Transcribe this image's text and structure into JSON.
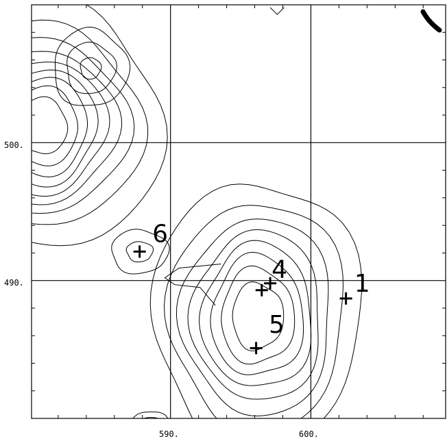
{
  "chart_data": {
    "type": "contour",
    "title": "",
    "xlabel": "",
    "ylabel": "",
    "x_axis_reversed": false,
    "xlim": [
      580.1,
      609.6
    ],
    "ylim": [
      480,
      510
    ],
    "x_gridlines": [
      590,
      600
    ],
    "y_gridlines": [
      490,
      500
    ],
    "x_tick_labels": [
      {
        "value": 590,
        "text": "590."
      },
      {
        "value": 600,
        "text": "600."
      }
    ],
    "y_tick_labels": [
      {
        "value": 500,
        "text": "500."
      },
      {
        "value": 490,
        "text": "490."
      }
    ],
    "x_minor_ticks": [
      582,
      584,
      586,
      588,
      592,
      594,
      596,
      598,
      602,
      604,
      606,
      608
    ],
    "y_minor_ticks": [
      482,
      484,
      486,
      488,
      492,
      494,
      496,
      498,
      502,
      504,
      506,
      508
    ],
    "peaks": [
      {
        "label": "1",
        "x": 602.5,
        "y": 488.7,
        "label_x": 603.1,
        "label_y": 489.2
      },
      {
        "label": "4",
        "x": 596.5,
        "y": 489.3,
        "label_x": 597.2,
        "label_y": 490.2
      },
      {
        "label": "5",
        "x": 596.1,
        "y": 485.1,
        "label_x": 597.0,
        "label_y": 486.2
      },
      {
        "label": "6",
        "x": 587.8,
        "y": 492.1,
        "label_x": 588.7,
        "label_y": 492.8
      }
    ],
    "extra_crosses": [
      {
        "x": 597.1,
        "y": 489.8
      }
    ],
    "contour_groups": [
      {
        "name": "contours-left-edge",
        "cx": 580.7,
        "cy": 501.2,
        "sx": 3.9,
        "sy": 4.0,
        "levels": [
          0.08,
          0.18,
          0.28,
          0.38,
          0.48,
          0.58,
          0.68,
          0.78,
          0.88
        ]
      },
      {
        "name": "contours-upper-left",
        "cx": 584.3,
        "cy": 505.4,
        "sx": 1.6,
        "sy": 1.7,
        "levels": [
          0.25,
          0.55,
          0.9
        ]
      },
      {
        "name": "contours-peak-6",
        "cx": 587.8,
        "cy": 492.1,
        "sx": 1.4,
        "sy": 1.1,
        "levels": [
          0.35,
          0.8
        ]
      },
      {
        "name": "contours-peak-4-5",
        "cx": 596.2,
        "cy": 487.4,
        "sx": 3.6,
        "sy": 4.8,
        "levels": [
          0.12,
          0.22,
          0.33,
          0.44,
          0.55,
          0.66,
          0.77,
          0.88
        ]
      },
      {
        "name": "contours-bottom-small",
        "cx": 588.5,
        "cy": 479.0,
        "sx": 1.0,
        "sy": 1.0,
        "levels": [
          0.3,
          0.55,
          0.8
        ]
      }
    ]
  }
}
